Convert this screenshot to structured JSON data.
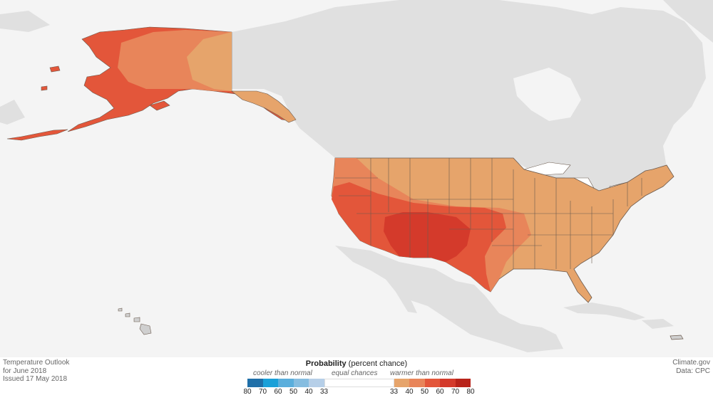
{
  "caption": {
    "line1": "Temperature Outlook",
    "line2": "for June 2018",
    "line3": "Issued 17 May 2018"
  },
  "credit": {
    "line1": "Climate.gov",
    "line2": "Data: CPC"
  },
  "legend": {
    "title_bold": "Probability",
    "title_rest": " (percent chance)",
    "cooler_label": "cooler than normal",
    "equal_label": "equal chances",
    "warmer_label": "warmer than normal",
    "cool_ticks": [
      "80",
      "70",
      "60",
      "50",
      "40",
      "33"
    ],
    "warm_ticks": [
      "33",
      "40",
      "50",
      "60",
      "70",
      "80"
    ],
    "cool_colors": [
      "#1f6fa8",
      "#1aa0d8",
      "#5aaedc",
      "#86bde0",
      "#b6cfe8"
    ],
    "equal_color": "#ffffff",
    "warm_colors": [
      "#e6a46b",
      "#e8855a",
      "#e3563a",
      "#d43a2b",
      "#b8231a"
    ]
  },
  "map_colors": {
    "ocean": "#f4f4f4",
    "land": "#e0e0e0",
    "state_border": "#6b5a4e",
    "prob_40": "#e6a46b",
    "prob_50": "#e8855a",
    "prob_60": "#e3563a",
    "prob_70": "#d43a2b"
  }
}
